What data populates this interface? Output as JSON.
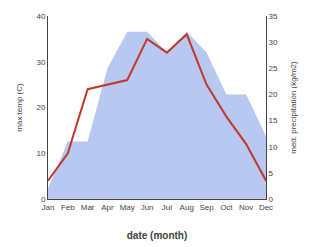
{
  "chart_data": {
    "type": "line",
    "categories": [
      "Jan",
      "Feb",
      "Mar",
      "Apr",
      "May",
      "Jun",
      "Jul",
      "Aug",
      "Sep",
      "Oct",
      "Nov",
      "Dec"
    ],
    "series": [
      {
        "type": "area",
        "axis": "y2",
        "color": "#b8c8f0",
        "values": [
          2,
          11,
          11,
          25,
          32,
          32,
          28,
          32,
          28,
          20,
          20,
          12
        ]
      },
      {
        "type": "line",
        "color": "#c0392b",
        "values": [
          4,
          10,
          24,
          25,
          26,
          35,
          32,
          36,
          25,
          18,
          12,
          4
        ]
      }
    ],
    "xlabel": "date (month)",
    "ylabel": "max temp (C)",
    "y2label": "med. precipitation (kg/m2)",
    "ylim": [
      0,
      40
    ],
    "yticks": [
      0,
      10,
      20,
      30,
      40
    ],
    "y2lim": [
      0,
      35
    ],
    "y2ticks": [
      0,
      5,
      10,
      15,
      20,
      25,
      30,
      35
    ],
    "grid": false
  }
}
